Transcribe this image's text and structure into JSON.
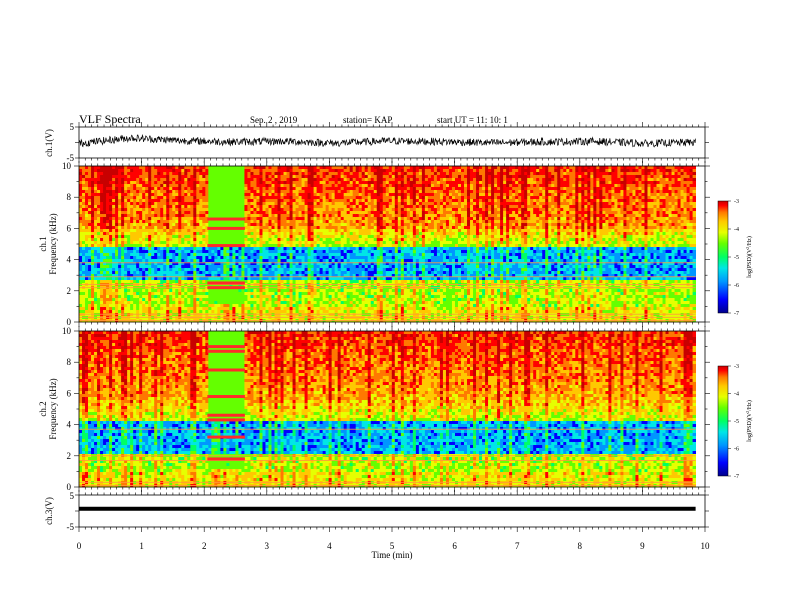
{
  "header": {
    "title": "VLF Spectra",
    "date": "Sep. 2  , 2019",
    "station": "station= KAP",
    "start": "start  UT  =   11: 10: 1"
  },
  "chart_data": [
    {
      "type": "line",
      "panel": "ch1-waveform",
      "ylabel": "ch.1(V)",
      "ylim": [
        -5,
        5
      ],
      "yticks": [
        "5",
        "-5"
      ],
      "x_range_min": [
        0,
        9.85
      ],
      "approx_level_V": [
        -0.3,
        1.5,
        0.6,
        0.2,
        0.4,
        -0.2,
        0.5,
        0.3,
        -0.1,
        0.2,
        0.4,
        -0.3,
        0.1
      ]
    },
    {
      "type": "heatmap",
      "panel": "ch1-spectrogram",
      "ylabel": "ch.1\nFrequency  (kHz)",
      "ylim": [
        0,
        10
      ],
      "yticks": [
        "0",
        "2",
        "4",
        "6",
        "8",
        "10"
      ],
      "x_range_min": [
        0,
        9.85
      ],
      "colorbar": {
        "label": "log(PSD)(V²/Hz)",
        "range": [
          -7,
          -3
        ],
        "ticks": [
          "-3",
          "-4",
          "-5",
          "-6",
          "-7"
        ]
      },
      "features": {
        "strong_burst_min": [
          2.05,
          2.65
        ],
        "burst_lines_kHz": [
          2.2,
          2.5,
          4.9,
          6.0,
          6.6
        ],
        "low_band_kHz": [
          2.7,
          4.8
        ],
        "constant_lines_kHz": [
          0.1,
          0.3,
          0.5,
          2.2,
          2.4,
          2.9,
          3.8
        ]
      }
    },
    {
      "type": "heatmap",
      "panel": "ch2-spectrogram",
      "ylabel": "ch.2\nFrequency  (kHz)",
      "ylim": [
        0,
        10
      ],
      "yticks": [
        "0",
        "2",
        "4",
        "6",
        "8",
        "10"
      ],
      "x_range_min": [
        0,
        9.85
      ],
      "colorbar": {
        "label": "log(PSD)(V²/Hz)",
        "range": [
          -7,
          -3
        ],
        "ticks": [
          "-3",
          "-4",
          "-5",
          "-6",
          "-7"
        ]
      },
      "features": {
        "strong_burst_min": [
          2.05,
          2.65
        ],
        "burst_lines_kHz": [
          1.8,
          3.2,
          4.3,
          4.6,
          5.8,
          7.5,
          8.7,
          9.0
        ],
        "low_band_kHz": [
          2.2,
          4.2
        ],
        "constant_lines_kHz": [
          0.1,
          0.3,
          1.7,
          2.0,
          3.7
        ]
      }
    },
    {
      "type": "line",
      "panel": "ch3-waveform",
      "ylabel": "ch.3(V)",
      "ylim": [
        -5,
        5
      ],
      "yticks": [
        "5",
        "-5"
      ],
      "x_range_min": [
        0,
        9.85
      ],
      "level_V": 0.7
    }
  ],
  "xaxis": {
    "label": "Time  (min)",
    "range": [
      0,
      10
    ],
    "ticks": [
      "0",
      "1",
      "2",
      "3",
      "4",
      "5",
      "6",
      "7",
      "8",
      "9",
      "10"
    ]
  },
  "colors": {
    "colormap": [
      "#00008c",
      "#0000ff",
      "#0096ff",
      "#00e6e6",
      "#00ff64",
      "#64ff00",
      "#e6ff00",
      "#ffc800",
      "#ff7800",
      "#ff0000",
      "#c80000"
    ],
    "burst_line": "#ff2a2a",
    "axes": "#000000"
  }
}
